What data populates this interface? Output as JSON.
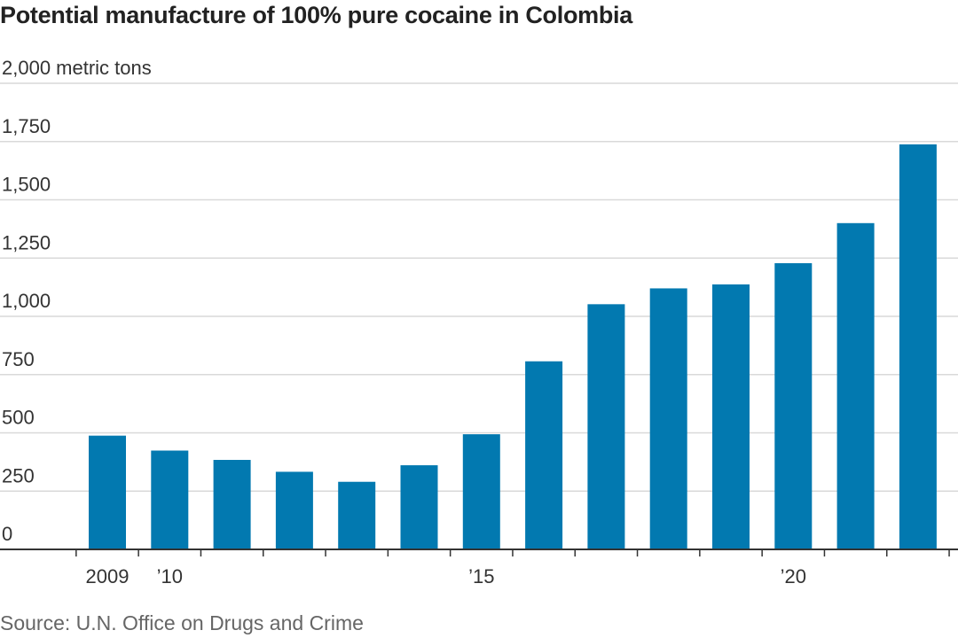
{
  "chart_data": {
    "type": "bar",
    "title": "Potential manufacture of 100% pure cocaine in Colombia",
    "ylabel": "2,000 metric tons",
    "source": "Source: U.N. Office on Drugs and Crime",
    "categories": [
      "2009",
      "2010",
      "2011",
      "2012",
      "2013",
      "2014",
      "2015",
      "2016",
      "2017",
      "2018",
      "2019",
      "2020",
      "2021",
      "2022"
    ],
    "values": [
      488,
      424,
      384,
      333,
      290,
      361,
      494,
      807,
      1052,
      1120,
      1137,
      1228,
      1400,
      1738
    ],
    "ylim": [
      0,
      2000
    ],
    "yticks": [
      0,
      250,
      500,
      750,
      1000,
      1250,
      1500,
      1750,
      2000
    ],
    "ytick_labels": [
      "0",
      "250",
      "500",
      "750",
      "1,000",
      "1,250",
      "1,500",
      "1,750",
      "2,000 metric tons"
    ],
    "xtick_labels": [
      {
        "index": 0,
        "label": "2009"
      },
      {
        "index": 1,
        "label": "’10"
      },
      {
        "index": 6,
        "label": "’15"
      },
      {
        "index": 11,
        "label": "’20"
      }
    ],
    "grid": true,
    "legend": "none",
    "bar_color": "#0279b0",
    "grid_color": "#d9d9d9",
    "axis_color": "#333333"
  }
}
